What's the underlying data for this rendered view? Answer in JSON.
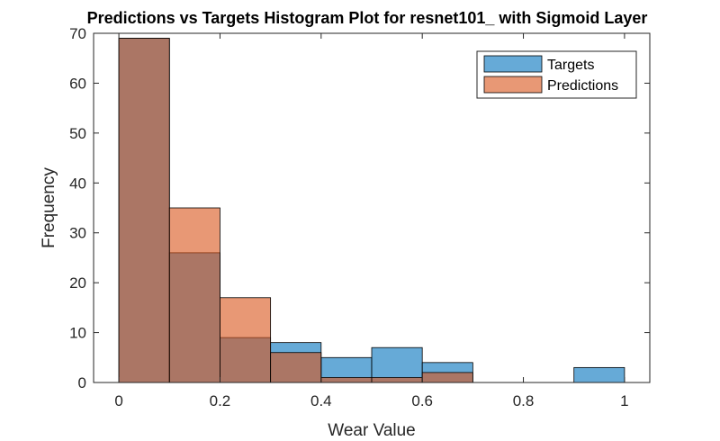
{
  "chart_data": {
    "type": "bar",
    "title": "Predictions vs Targets Histogram Plot for resnet101_ with Sigmoid Layer",
    "xlabel": "Wear Value",
    "ylabel": "Frequency",
    "xlim": [
      -0.05,
      1.05
    ],
    "ylim": [
      0,
      70
    ],
    "xticks": [
      0,
      0.2,
      0.4,
      0.6,
      0.8,
      1
    ],
    "xtick_labels": [
      "0",
      "0.2",
      "0.4",
      "0.6",
      "0.8",
      "1"
    ],
    "yticks": [
      0,
      10,
      20,
      30,
      40,
      50,
      60,
      70
    ],
    "ytick_labels": [
      "0",
      "10",
      "20",
      "30",
      "40",
      "50",
      "60",
      "70"
    ],
    "bin_edges": [
      0,
      0.1,
      0.2,
      0.3,
      0.4,
      0.5,
      0.6,
      0.7,
      0.8,
      0.9,
      1.0
    ],
    "series": [
      {
        "name": "Targets",
        "color": "#0072BD",
        "face_alpha": 0.6,
        "values": [
          69,
          26,
          9,
          8,
          5,
          7,
          4,
          0,
          0,
          3
        ]
      },
      {
        "name": "Predictions",
        "color": "#D95319",
        "face_alpha": 0.6,
        "values": [
          69,
          35,
          17,
          6,
          1,
          1,
          2,
          0,
          0,
          0
        ]
      }
    ],
    "legend": {
      "position": "top-right"
    },
    "grid": false
  }
}
